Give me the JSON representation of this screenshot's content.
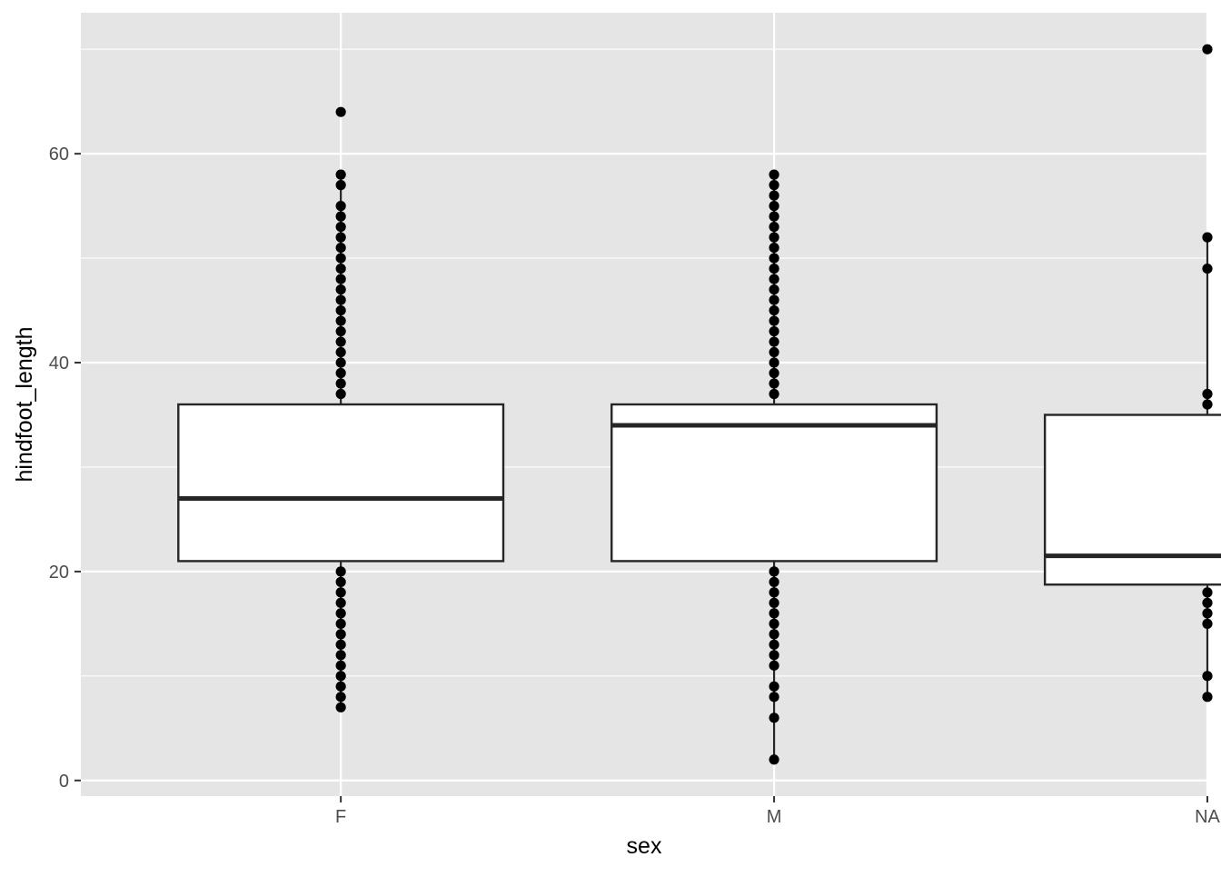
{
  "chart_data": {
    "type": "boxplot",
    "xlabel": "sex",
    "ylabel": "hindfoot_length",
    "categories": [
      "F",
      "M",
      "NA"
    ],
    "ylim": [
      -1.5,
      73.5
    ],
    "y_major_ticks": [
      0,
      20,
      40,
      60
    ],
    "y_minor_ticks": [
      10,
      30,
      50,
      70
    ],
    "grid": true,
    "panel_background": "#e5e5e5",
    "grid_color": "#ffffff",
    "box_fill": "#ffffff",
    "line_color": "#262626",
    "point_color": "#000000",
    "boxes": [
      {
        "category": "F",
        "q1": 21,
        "median": 27,
        "q3": 36,
        "whisker_low": 7,
        "whisker_high": 58,
        "points_low": [
          7,
          8,
          9,
          10,
          11,
          12,
          13,
          14,
          15,
          16,
          17,
          18,
          19,
          20
        ],
        "points_high": [
          37,
          38,
          39,
          40,
          41,
          42,
          43,
          44,
          45,
          46,
          47,
          48,
          49,
          50,
          51,
          52,
          53,
          54,
          55,
          57,
          58,
          64
        ]
      },
      {
        "category": "M",
        "q1": 21,
        "median": 34,
        "q3": 36,
        "whisker_low": 2,
        "whisker_high": 58,
        "points_low": [
          2,
          6,
          8,
          9,
          11,
          12,
          13,
          14,
          15,
          16,
          17,
          18,
          19,
          20
        ],
        "points_high": [
          37,
          38,
          39,
          40,
          41,
          42,
          43,
          44,
          45,
          46,
          47,
          48,
          49,
          50,
          51,
          52,
          53,
          54,
          55,
          56,
          57,
          58
        ]
      },
      {
        "category": "NA",
        "q1": 18.75,
        "median": 21.5,
        "q3": 35,
        "whisker_low": 8,
        "whisker_high": 52,
        "points_low": [
          8,
          10,
          15,
          16,
          17,
          18
        ],
        "points_high": [
          36,
          37,
          49,
          52,
          70
        ]
      }
    ]
  }
}
